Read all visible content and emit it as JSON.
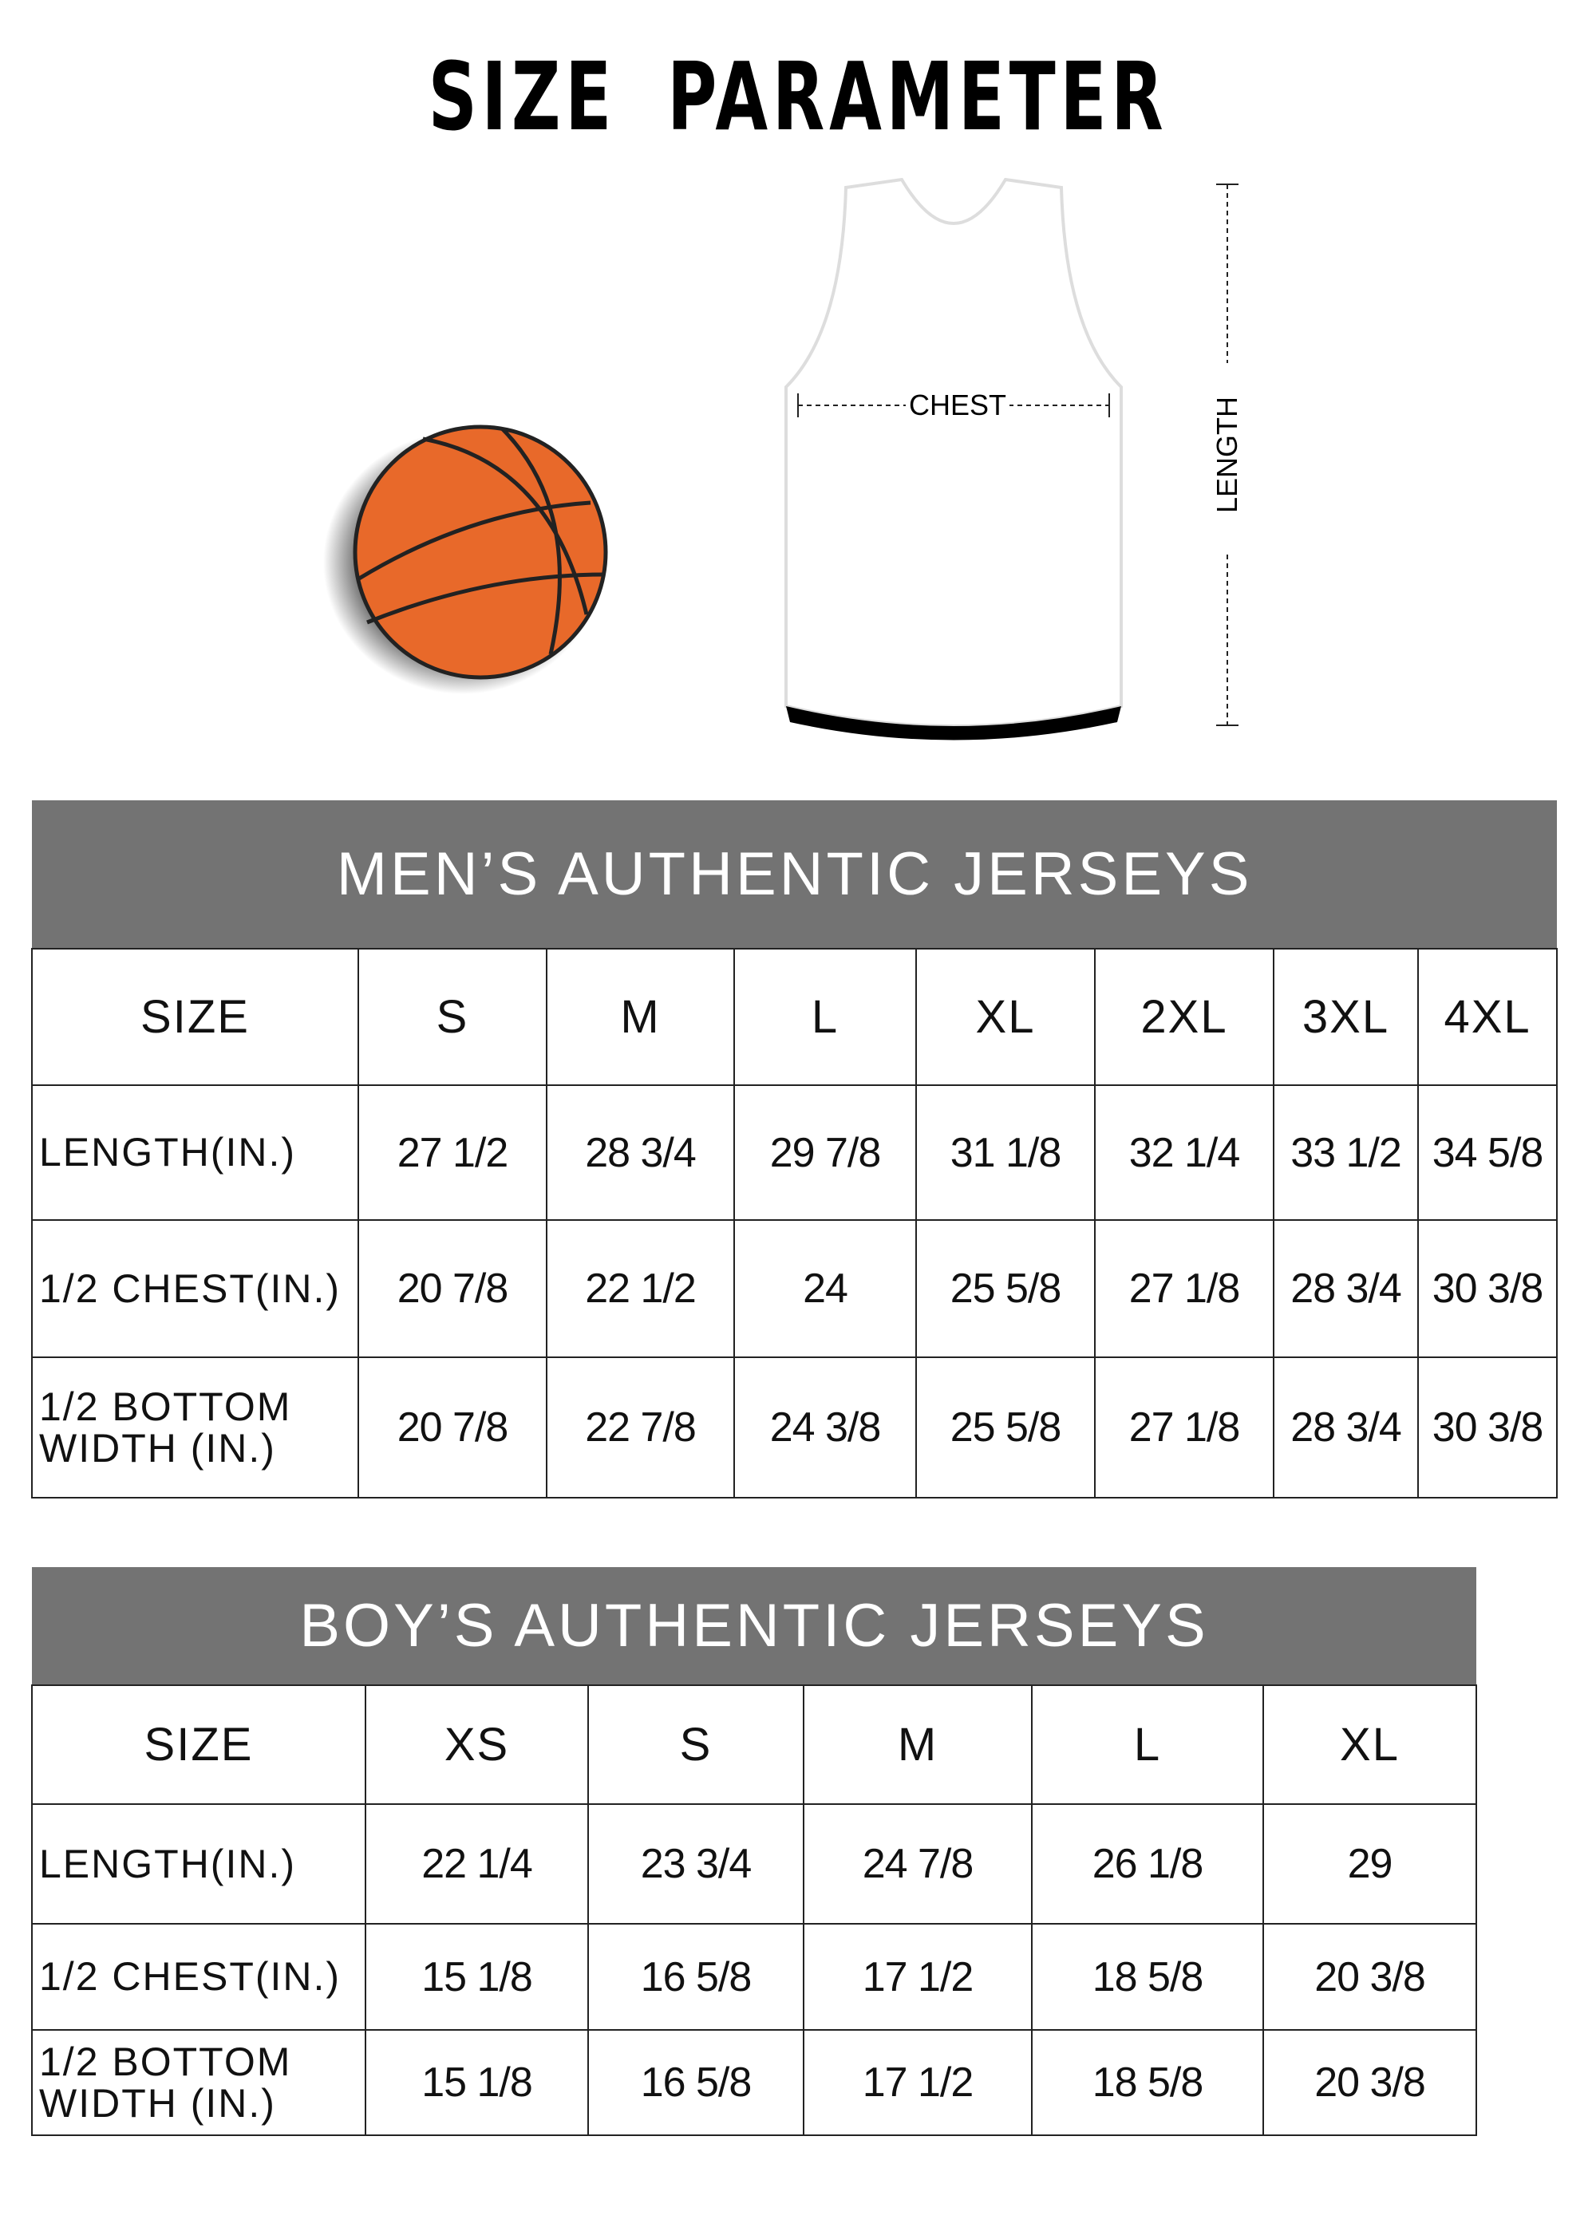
{
  "title": "SIZE PARAMETER",
  "diagram": {
    "chest_label": "CHEST",
    "length_label": "LENGTH"
  },
  "colors": {
    "header_bg": "#737373",
    "ball": "#e8692a"
  },
  "men": {
    "title": "MEN’S AUTHENTIC JERSEYS",
    "size_label": "SIZE",
    "sizes": [
      "S",
      "M",
      "L",
      "XL",
      "2XL",
      "3XL",
      "4XL"
    ],
    "rows": [
      {
        "label": "LENGTH(IN.)",
        "values": [
          "27  1/2",
          "28  3/4",
          "29  7/8",
          "31  1/8",
          "32  1/4",
          "33  1/2",
          "34  5/8"
        ]
      },
      {
        "label": "1/2 CHEST(IN.)",
        "values": [
          "20  7/8",
          "22  1/2",
          "24",
          "25  5/8",
          "27  1/8",
          "28  3/4",
          "30  3/8"
        ]
      },
      {
        "label": "1/2 BOTTOM WIDTH  (IN.)",
        "values": [
          "20  7/8",
          "22  7/8",
          "24  3/8",
          "25  5/8",
          "27  1/8",
          "28  3/4",
          "30  3/8"
        ]
      }
    ]
  },
  "boy": {
    "title": "BOY’S AUTHENTIC JERSEYS",
    "size_label": "SIZE",
    "sizes": [
      "XS",
      "S",
      "M",
      "L",
      "XL"
    ],
    "rows": [
      {
        "label": "LENGTH(IN.)",
        "values": [
          "22  1/4",
          "23  3/4",
          "24  7/8",
          "26  1/8",
          "29"
        ]
      },
      {
        "label": "1/2 CHEST(IN.)",
        "values": [
          "15  1/8",
          "16  5/8",
          "17  1/2",
          "18  5/8",
          "20  3/8"
        ]
      },
      {
        "label": "1/2 BOTTOM WIDTH  (IN.)",
        "values": [
          "15  1/8",
          "16  5/8",
          "17  1/2",
          "18  5/8",
          "20  3/8"
        ]
      }
    ]
  }
}
